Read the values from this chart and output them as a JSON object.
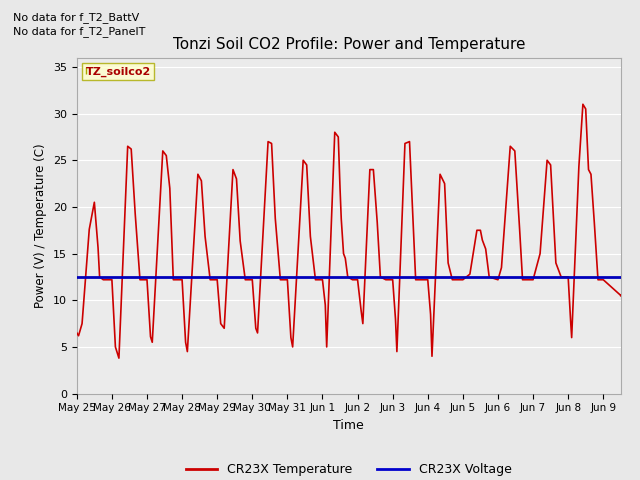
{
  "title": "Tonzi Soil CO2 Profile: Power and Temperature",
  "xlabel": "Time",
  "ylabel": "Power (V) / Temperature (C)",
  "ylim": [
    0,
    36
  ],
  "yticks": [
    0,
    5,
    10,
    15,
    20,
    25,
    30,
    35
  ],
  "annotation_lines": [
    "No data for f_T2_BattV",
    "No data for f_T2_PanelT"
  ],
  "legend_label_box": "TZ_soilco2",
  "legend_entries": [
    {
      "label": "CR23X Temperature",
      "color": "#cc0000"
    },
    {
      "label": "CR23X Voltage",
      "color": "#0000cc"
    }
  ],
  "voltage_value": 12.5,
  "bg_color": "#e8e8e8",
  "plot_bg_color": "#ebebeb",
  "temp_color": "#cc0000",
  "voltage_color": "#0000bb",
  "x_tick_labels": [
    "May 25",
    "May 26",
    "May 27",
    "May 28",
    "May 29",
    "May 30",
    "May 31",
    "Jun 1",
    "Jun 2",
    "Jun 3",
    "Jun 4",
    "Jun 5",
    "Jun 6",
    "Jun 7",
    "Jun 8",
    "Jun 9"
  ],
  "grid_color": "#ffffff",
  "spine_color": "#aaaaaa",
  "note1": "No data for f_T2_BattV",
  "note2": "No data for f_T2_PanelT"
}
